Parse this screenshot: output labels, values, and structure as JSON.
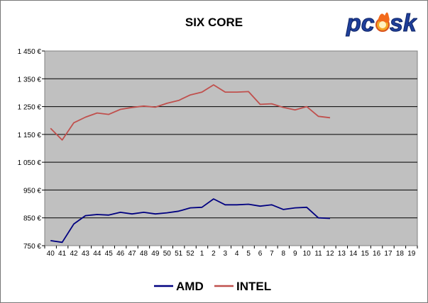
{
  "logo": {
    "text": "pcsk",
    "icon": "flame-o-icon"
  },
  "chart_data": {
    "type": "line",
    "title": "SIX CORE",
    "x": [
      "40",
      "41",
      "42",
      "43",
      "44",
      "45",
      "46",
      "47",
      "48",
      "49",
      "50",
      "51",
      "52",
      "1",
      "2",
      "3",
      "4",
      "5",
      "6",
      "7",
      "8",
      "9",
      "10",
      "11",
      "12",
      "13",
      "14",
      "15",
      "16",
      "17",
      "18",
      "19"
    ],
    "y_ticks": [
      "750 €",
      "850 €",
      "950 €",
      "1 050 €",
      "1 150 €",
      "1 250 €",
      "1 350 €",
      "1 450 €"
    ],
    "ylim": [
      750,
      1450
    ],
    "grid": true,
    "legend": "bottom",
    "series": [
      {
        "name": "AMD",
        "color": "#000080",
        "values": [
          768,
          762,
          828,
          858,
          862,
          860,
          870,
          864,
          870,
          864,
          868,
          874,
          886,
          888,
          918,
          897,
          897,
          899,
          892,
          897,
          880,
          886,
          888,
          850,
          848,
          null,
          null,
          null,
          null,
          null,
          null,
          null
        ]
      },
      {
        "name": "INTEL",
        "color": "#c0504d",
        "values": [
          1172,
          1130,
          1192,
          1212,
          1227,
          1222,
          1240,
          1247,
          1252,
          1248,
          1262,
          1272,
          1292,
          1302,
          1328,
          1302,
          1302,
          1304,
          1258,
          1260,
          1247,
          1238,
          1250,
          1215,
          1210,
          null,
          null,
          null,
          null,
          null,
          null,
          null
        ]
      }
    ]
  }
}
